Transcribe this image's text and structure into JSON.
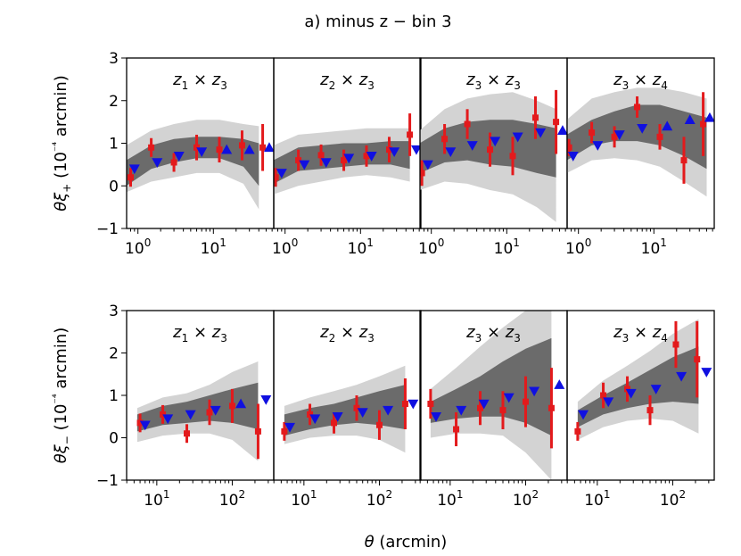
{
  "title": "a) minus z − bin 3",
  "xlabel": "θ (arcmin)",
  "colors": {
    "band_outer": "#d3d3d3",
    "band_inner": "#6b6b6b",
    "data": "#e31a1c",
    "model": "#1010e0"
  },
  "chart_data": [
    {
      "row": "xi_plus",
      "ylabel": "θξ+ (10⁻⁴ arcmin)",
      "ylim": [
        -1,
        3
      ],
      "yticks": [
        -1,
        0,
        1,
        2,
        3
      ],
      "xlog": true,
      "xlim_log10": [
        -0.15,
        1.8
      ],
      "xticks": [
        {
          "v": 1,
          "label": "10",
          "exp": "0"
        },
        {
          "v": 10,
          "label": "10",
          "exp": "1"
        }
      ],
      "panels": [
        {
          "label": [
            "z",
            "1",
            "z",
            "3"
          ],
          "band_x": [
            0.7,
            1.5,
            3,
            6,
            12,
            25,
            40
          ],
          "outer_hi": [
            0.95,
            1.3,
            1.45,
            1.55,
            1.55,
            1.45,
            1.4
          ],
          "outer_lo": [
            -0.15,
            0.1,
            0.2,
            0.3,
            0.3,
            0.05,
            -0.55
          ],
          "inner_hi": [
            0.6,
            0.95,
            1.1,
            1.15,
            1.15,
            1.1,
            1.0
          ],
          "inner_lo": [
            0.0,
            0.4,
            0.55,
            0.65,
            0.65,
            0.45,
            0.0
          ],
          "points": [
            {
              "x": 0.8,
              "y": 0.2,
              "err": 0.22
            },
            {
              "x": 1.5,
              "y": 0.9,
              "err": 0.22
            },
            {
              "x": 3.0,
              "y": 0.55,
              "err": 0.22
            },
            {
              "x": 6.0,
              "y": 0.9,
              "err": 0.3
            },
            {
              "x": 12.0,
              "y": 0.85,
              "err": 0.3
            },
            {
              "x": 24.0,
              "y": 0.95,
              "err": 0.35
            },
            {
              "x": 45.0,
              "y": 0.9,
              "err": 0.55
            }
          ],
          "model": [
            {
              "x": 0.9,
              "y": 0.4,
              "dir": "down"
            },
            {
              "x": 1.8,
              "y": 0.55,
              "dir": "down"
            },
            {
              "x": 3.5,
              "y": 0.7,
              "dir": "down"
            },
            {
              "x": 7.0,
              "y": 0.8,
              "dir": "down"
            },
            {
              "x": 15.0,
              "y": 0.85,
              "dir": "up"
            },
            {
              "x": 30.0,
              "y": 0.85,
              "dir": "up"
            },
            {
              "x": 55.0,
              "y": 0.9,
              "dir": "up"
            }
          ]
        },
        {
          "label": [
            "z",
            "2",
            "z",
            "3"
          ],
          "band_x": [
            0.7,
            1.5,
            3,
            6,
            12,
            25,
            45
          ],
          "outer_hi": [
            0.95,
            1.2,
            1.25,
            1.3,
            1.35,
            1.35,
            1.35
          ],
          "outer_lo": [
            -0.2,
            0.0,
            0.1,
            0.2,
            0.25,
            0.2,
            0.1
          ],
          "inner_hi": [
            0.6,
            0.9,
            0.95,
            1.0,
            1.0,
            1.05,
            1.05
          ],
          "inner_lo": [
            0.05,
            0.35,
            0.4,
            0.45,
            0.5,
            0.5,
            0.4
          ],
          "points": [
            {
              "x": 0.75,
              "y": 0.2,
              "err": 0.22
            },
            {
              "x": 1.5,
              "y": 0.6,
              "err": 0.25
            },
            {
              "x": 3.0,
              "y": 0.72,
              "err": 0.25
            },
            {
              "x": 6.0,
              "y": 0.6,
              "err": 0.25
            },
            {
              "x": 12.0,
              "y": 0.7,
              "err": 0.25
            },
            {
              "x": 24.0,
              "y": 0.85,
              "err": 0.3
            },
            {
              "x": 45.0,
              "y": 1.2,
              "err": 0.5
            }
          ],
          "model": [
            {
              "x": 0.9,
              "y": 0.3,
              "dir": "down"
            },
            {
              "x": 1.8,
              "y": 0.5,
              "dir": "down"
            },
            {
              "x": 3.5,
              "y": 0.55,
              "dir": "down"
            },
            {
              "x": 7.0,
              "y": 0.65,
              "dir": "down"
            },
            {
              "x": 14.0,
              "y": 0.7,
              "dir": "down"
            },
            {
              "x": 28.0,
              "y": 0.8,
              "dir": "down"
            },
            {
              "x": 55.0,
              "y": 0.85,
              "dir": "down"
            }
          ]
        },
        {
          "label": [
            "z",
            "3",
            "z",
            "3"
          ],
          "band_x": [
            0.7,
            1.5,
            3,
            6,
            12,
            25,
            45
          ],
          "outer_hi": [
            1.3,
            1.8,
            2.05,
            2.15,
            2.2,
            2.0,
            1.8
          ],
          "outer_lo": [
            -0.1,
            0.1,
            0.05,
            -0.1,
            -0.2,
            -0.5,
            -0.85
          ],
          "inner_hi": [
            1.0,
            1.35,
            1.5,
            1.55,
            1.55,
            1.45,
            1.35
          ],
          "inner_lo": [
            0.3,
            0.55,
            0.6,
            0.5,
            0.45,
            0.3,
            0.2
          ],
          "points": [
            {
              "x": 0.75,
              "y": 0.3,
              "err": 0.3
            },
            {
              "x": 1.5,
              "y": 1.1,
              "err": 0.35
            },
            {
              "x": 3.0,
              "y": 1.45,
              "err": 0.35
            },
            {
              "x": 6.0,
              "y": 0.85,
              "err": 0.4
            },
            {
              "x": 12.0,
              "y": 0.7,
              "err": 0.45
            },
            {
              "x": 24.0,
              "y": 1.6,
              "err": 0.5
            },
            {
              "x": 45.0,
              "y": 1.5,
              "err": 0.75
            }
          ],
          "model": [
            {
              "x": 0.9,
              "y": 0.5,
              "dir": "down"
            },
            {
              "x": 1.8,
              "y": 0.8,
              "dir": "down"
            },
            {
              "x": 3.5,
              "y": 0.95,
              "dir": "down"
            },
            {
              "x": 7.0,
              "y": 1.05,
              "dir": "down"
            },
            {
              "x": 14.0,
              "y": 1.15,
              "dir": "down"
            },
            {
              "x": 28.0,
              "y": 1.25,
              "dir": "down"
            },
            {
              "x": 55.0,
              "y": 1.3,
              "dir": "up"
            }
          ]
        },
        {
          "label": [
            "z",
            "3",
            "z",
            "4"
          ],
          "band_x": [
            0.7,
            1.5,
            3,
            6,
            12,
            25,
            50
          ],
          "outer_hi": [
            1.55,
            2.05,
            2.2,
            2.3,
            2.3,
            2.2,
            2.05
          ],
          "outer_lo": [
            0.3,
            0.6,
            0.65,
            0.6,
            0.45,
            0.1,
            -0.25
          ],
          "inner_hi": [
            1.2,
            1.55,
            1.75,
            1.9,
            1.9,
            1.75,
            1.6
          ],
          "inner_lo": [
            0.6,
            0.95,
            1.05,
            1.05,
            0.95,
            0.7,
            0.4
          ],
          "points": [
            {
              "x": 0.75,
              "y": 0.9,
              "err": 0.2
            },
            {
              "x": 1.5,
              "y": 1.25,
              "err": 0.25
            },
            {
              "x": 3.0,
              "y": 1.15,
              "err": 0.25
            },
            {
              "x": 6.0,
              "y": 1.85,
              "err": 0.25
            },
            {
              "x": 12.0,
              "y": 1.15,
              "err": 0.3
            },
            {
              "x": 25.0,
              "y": 0.6,
              "err": 0.55
            },
            {
              "x": 45.0,
              "y": 1.45,
              "err": 0.75
            }
          ],
          "model": [
            {
              "x": 0.85,
              "y": 0.7,
              "dir": "down"
            },
            {
              "x": 1.8,
              "y": 0.95,
              "dir": "down"
            },
            {
              "x": 3.5,
              "y": 1.2,
              "dir": "down"
            },
            {
              "x": 7.0,
              "y": 1.35,
              "dir": "down"
            },
            {
              "x": 15.0,
              "y": 1.4,
              "dir": "up"
            },
            {
              "x": 30.0,
              "y": 1.55,
              "dir": "up"
            },
            {
              "x": 55.0,
              "y": 1.6,
              "dir": "up"
            }
          ]
        }
      ]
    },
    {
      "row": "xi_minus",
      "ylabel": "θξ− (10⁻⁴ arcmin)",
      "ylim": [
        -1,
        3
      ],
      "yticks": [
        -1,
        0,
        1,
        2,
        3
      ],
      "xlog": true,
      "xlim_log10": [
        0.6,
        2.55
      ],
      "xticks": [
        {
          "v": 10,
          "label": "10",
          "exp": "1"
        },
        {
          "v": 100,
          "label": "10",
          "exp": "2"
        }
      ],
      "panels": [
        {
          "label": [
            "z",
            "1",
            "z",
            "3"
          ],
          "band_x": [
            5.5,
            12,
            25,
            50,
            100,
            220
          ],
          "outer_hi": [
            0.7,
            0.95,
            1.05,
            1.25,
            1.55,
            1.8
          ],
          "outer_lo": [
            -0.1,
            0.05,
            0.1,
            0.1,
            -0.05,
            -0.55
          ],
          "inner_hi": [
            0.55,
            0.75,
            0.85,
            1.0,
            1.15,
            1.3
          ],
          "inner_lo": [
            0.15,
            0.3,
            0.35,
            0.4,
            0.35,
            0.2
          ],
          "points": [
            {
              "x": 6.0,
              "y": 0.35,
              "err": 0.22
            },
            {
              "x": 12.0,
              "y": 0.55,
              "err": 0.22
            },
            {
              "x": 25.0,
              "y": 0.1,
              "err": 0.22
            },
            {
              "x": 50.0,
              "y": 0.6,
              "err": 0.3
            },
            {
              "x": 100.0,
              "y": 0.75,
              "err": 0.4
            },
            {
              "x": 220.0,
              "y": 0.15,
              "err": 0.65
            }
          ],
          "model": [
            {
              "x": 7.0,
              "y": 0.3,
              "dir": "down"
            },
            {
              "x": 14.0,
              "y": 0.45,
              "dir": "down"
            },
            {
              "x": 28.0,
              "y": 0.55,
              "dir": "down"
            },
            {
              "x": 60.0,
              "y": 0.65,
              "dir": "down"
            },
            {
              "x": 130.0,
              "y": 0.8,
              "dir": "up"
            },
            {
              "x": 280.0,
              "y": 0.9,
              "dir": "down"
            }
          ]
        },
        {
          "label": [
            "z",
            "2",
            "z",
            "3"
          ],
          "band_x": [
            5.5,
            12,
            25,
            50,
            100,
            220
          ],
          "outer_hi": [
            0.75,
            0.95,
            1.1,
            1.25,
            1.45,
            1.7
          ],
          "outer_lo": [
            -0.15,
            0.0,
            0.05,
            0.05,
            -0.05,
            -0.35
          ],
          "inner_hi": [
            0.55,
            0.7,
            0.8,
            0.95,
            1.1,
            1.25
          ],
          "inner_lo": [
            0.05,
            0.2,
            0.3,
            0.35,
            0.3,
            0.2
          ],
          "points": [
            {
              "x": 5.5,
              "y": 0.15,
              "err": 0.22
            },
            {
              "x": 12.0,
              "y": 0.55,
              "err": 0.25
            },
            {
              "x": 25.0,
              "y": 0.35,
              "err": 0.25
            },
            {
              "x": 50.0,
              "y": 0.7,
              "err": 0.3
            },
            {
              "x": 100.0,
              "y": 0.3,
              "err": 0.35
            },
            {
              "x": 220.0,
              "y": 0.8,
              "err": 0.6
            }
          ],
          "model": [
            {
              "x": 6.5,
              "y": 0.25,
              "dir": "down"
            },
            {
              "x": 14.0,
              "y": 0.45,
              "dir": "down"
            },
            {
              "x": 28.0,
              "y": 0.5,
              "dir": "down"
            },
            {
              "x": 60.0,
              "y": 0.6,
              "dir": "down"
            },
            {
              "x": 130.0,
              "y": 0.65,
              "dir": "down"
            },
            {
              "x": 280.0,
              "y": 0.8,
              "dir": "down"
            }
          ]
        },
        {
          "label": [
            "z",
            "3",
            "z",
            "3"
          ],
          "band_x": [
            5.5,
            12,
            25,
            50,
            100,
            220
          ],
          "outer_hi": [
            1.15,
            1.65,
            2.15,
            2.6,
            3.0,
            3.2
          ],
          "outer_lo": [
            0.0,
            0.1,
            0.1,
            0.05,
            -0.35,
            -1.0
          ],
          "inner_hi": [
            0.85,
            1.15,
            1.45,
            1.8,
            2.1,
            2.35
          ],
          "inner_lo": [
            0.35,
            0.45,
            0.5,
            0.5,
            0.35,
            0.05
          ],
          "points": [
            {
              "x": 5.5,
              "y": 0.8,
              "err": 0.35
            },
            {
              "x": 12.0,
              "y": 0.2,
              "err": 0.4
            },
            {
              "x": 25.0,
              "y": 0.7,
              "err": 0.4
            },
            {
              "x": 50.0,
              "y": 0.65,
              "err": 0.45
            },
            {
              "x": 100.0,
              "y": 0.85,
              "err": 0.6
            },
            {
              "x": 220.0,
              "y": 0.7,
              "err": 0.95
            }
          ],
          "model": [
            {
              "x": 6.5,
              "y": 0.5,
              "dir": "down"
            },
            {
              "x": 14.0,
              "y": 0.65,
              "dir": "down"
            },
            {
              "x": 28.0,
              "y": 0.8,
              "dir": "down"
            },
            {
              "x": 60.0,
              "y": 0.95,
              "dir": "down"
            },
            {
              "x": 130.0,
              "y": 1.1,
              "dir": "down"
            },
            {
              "x": 280.0,
              "y": 1.25,
              "dir": "up"
            }
          ]
        },
        {
          "label": [
            "z",
            "3",
            "z",
            "4"
          ],
          "band_x": [
            5.5,
            12,
            25,
            50,
            100,
            220
          ],
          "outer_hi": [
            0.85,
            1.35,
            1.7,
            2.05,
            2.45,
            2.8
          ],
          "outer_lo": [
            -0.05,
            0.25,
            0.4,
            0.45,
            0.4,
            0.1
          ],
          "inner_hi": [
            0.65,
            1.0,
            1.3,
            1.6,
            1.9,
            2.15
          ],
          "inner_lo": [
            0.25,
            0.55,
            0.7,
            0.8,
            0.85,
            0.8
          ],
          "points": [
            {
              "x": 5.5,
              "y": 0.15,
              "err": 0.22
            },
            {
              "x": 12.0,
              "y": 1.0,
              "err": 0.3
            },
            {
              "x": 25.0,
              "y": 1.15,
              "err": 0.3
            },
            {
              "x": 50.0,
              "y": 0.65,
              "err": 0.35
            },
            {
              "x": 110.0,
              "y": 2.2,
              "err": 0.55
            },
            {
              "x": 210.0,
              "y": 1.85,
              "err": 0.9
            }
          ],
          "model": [
            {
              "x": 6.5,
              "y": 0.55,
              "dir": "down"
            },
            {
              "x": 14.0,
              "y": 0.85,
              "dir": "down"
            },
            {
              "x": 28.0,
              "y": 1.05,
              "dir": "down"
            },
            {
              "x": 60.0,
              "y": 1.15,
              "dir": "down"
            },
            {
              "x": 130.0,
              "y": 1.45,
              "dir": "down"
            },
            {
              "x": 280.0,
              "y": 1.55,
              "dir": "down"
            }
          ]
        }
      ]
    }
  ]
}
